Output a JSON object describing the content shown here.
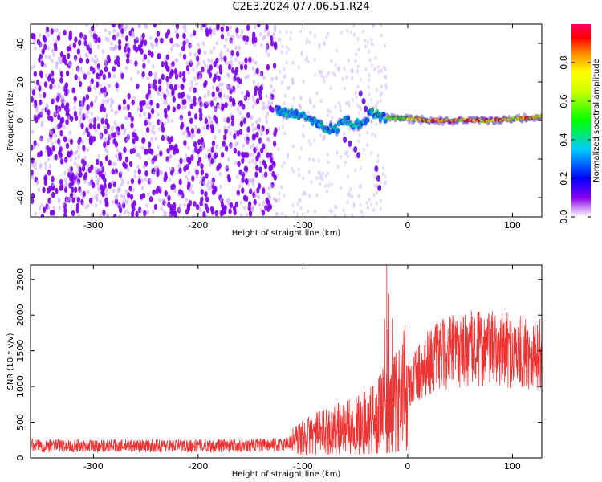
{
  "title": "C2E3.2024.077.06.51.R24",
  "chart_data": [
    {
      "type": "heatmap",
      "xlabel": "Height of straight line (km)",
      "ylabel": "Frequency (Hz)",
      "xlim": [
        -360,
        128
      ],
      "ylim": [
        -50,
        50
      ],
      "xticks": [
        -300,
        -200,
        -100,
        0,
        100
      ],
      "yticks": [
        -40,
        -20,
        0,
        20,
        40
      ],
      "colorbar": {
        "label": "Normalized spectral amplitude",
        "range": [
          0,
          1
        ],
        "ticks": [
          "0.0",
          "0.2",
          "0.4",
          "0.6",
          "0.8"
        ],
        "tick_values": [
          0.0,
          0.2,
          0.4,
          0.6,
          0.8
        ]
      },
      "features": {
        "noise_region_x": [
          -360,
          -125
        ],
        "sparse_region_x": [
          -125,
          -20
        ],
        "signal_ridge": [
          {
            "x": -125,
            "y": 5
          },
          {
            "x": -110,
            "y": 4
          },
          {
            "x": -95,
            "y": 1
          },
          {
            "x": -80,
            "y": -3
          },
          {
            "x": -70,
            "y": -5
          },
          {
            "x": -60,
            "y": 0
          },
          {
            "x": -45,
            "y": -2
          },
          {
            "x": -35,
            "y": 4
          },
          {
            "x": -20,
            "y": 1
          },
          {
            "x": 0,
            "y": 1
          },
          {
            "x": 20,
            "y": 0
          },
          {
            "x": 50,
            "y": 0
          },
          {
            "x": 80,
            "y": 0
          },
          {
            "x": 110,
            "y": 1
          },
          {
            "x": 128,
            "y": 2
          }
        ]
      }
    },
    {
      "type": "line",
      "xlabel": "Height of straight line (km)",
      "ylabel": "SNR (10 * v/v)",
      "xlim": [
        -360,
        128
      ],
      "ylim": [
        0,
        2700
      ],
      "xticks": [
        -300,
        -200,
        -100,
        0,
        100
      ],
      "yticks": [
        0,
        500,
        1000,
        1500,
        2000,
        2500
      ],
      "series_color": "#ee3333",
      "envelope": [
        {
          "x": -360,
          "y": 170
        },
        {
          "x": -300,
          "y": 170
        },
        {
          "x": -200,
          "y": 170
        },
        {
          "x": -120,
          "y": 180
        },
        {
          "x": -105,
          "y": 260
        },
        {
          "x": -90,
          "y": 330
        },
        {
          "x": -70,
          "y": 400
        },
        {
          "x": -50,
          "y": 450
        },
        {
          "x": -35,
          "y": 550
        },
        {
          "x": -25,
          "y": 650
        },
        {
          "x": -15,
          "y": 750
        },
        {
          "x": 0,
          "y": 1050
        },
        {
          "x": 20,
          "y": 1350
        },
        {
          "x": 40,
          "y": 1480
        },
        {
          "x": 60,
          "y": 1530
        },
        {
          "x": 90,
          "y": 1520
        },
        {
          "x": 110,
          "y": 1470
        },
        {
          "x": 128,
          "y": 1450
        }
      ],
      "spikes": [
        {
          "x": -20,
          "y": 2700
        },
        {
          "x": -19,
          "y": 1800
        },
        {
          "x": -18,
          "y": 2300
        },
        {
          "x": -15,
          "y": 1950
        },
        {
          "x": -22,
          "y": 1950
        }
      ]
    }
  ]
}
